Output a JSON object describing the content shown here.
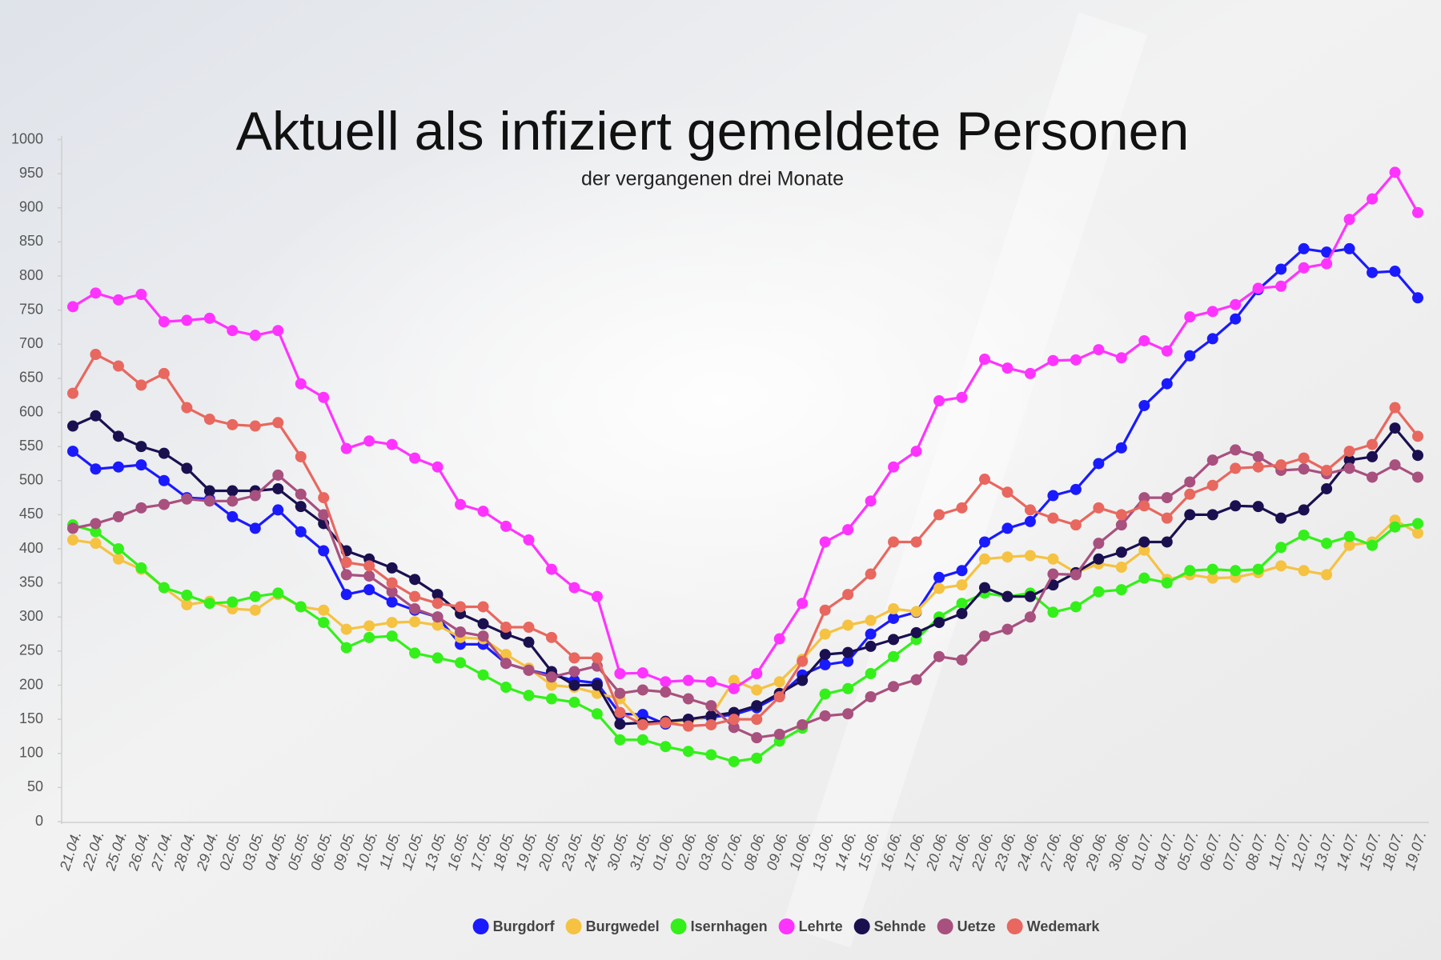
{
  "chart_data": {
    "type": "line",
    "title": "Aktuell als infiziert gemeldete Personen",
    "subtitle": "der vergangenen drei Monate",
    "categories": [
      "21.04.",
      "22.04.",
      "25.04.",
      "26.04.",
      "27.04.",
      "28.04.",
      "29.04.",
      "02.05.",
      "03.05.",
      "04.05.",
      "05.05.",
      "06.05.",
      "09.05.",
      "10.05.",
      "11.05.",
      "12.05.",
      "13.05.",
      "16.05.",
      "17.05.",
      "18.05.",
      "19.05.",
      "20.05.",
      "23.05.",
      "24.05.",
      "30.05.",
      "31.05.",
      "01.06.",
      "02.06.",
      "03.06.",
      "07.06.",
      "08.06.",
      "09.06.",
      "10.06.",
      "13.06.",
      "14.06.",
      "15.06.",
      "16.06.",
      "17.06.",
      "20.06.",
      "21.06.",
      "22.06.",
      "23.06.",
      "24.06.",
      "27.06.",
      "28.06.",
      "29.06.",
      "30.06.",
      "01.07.",
      "04.07.",
      "05.07.",
      "06.07.",
      "07.07.",
      "08.07.",
      "11.07.",
      "12.07.",
      "13.07.",
      "14.07.",
      "15.07.",
      "18.07.",
      "19.07."
    ],
    "series": [
      {
        "name": "Burgdorf",
        "color": "#1a1aff",
        "values": [
          543,
          517,
          520,
          523,
          500,
          475,
          473,
          447,
          430,
          457,
          425,
          397,
          333,
          340,
          322,
          310,
          300,
          260,
          260,
          232,
          222,
          215,
          207,
          203,
          158,
          157,
          143,
          150,
          153,
          157,
          167,
          185,
          215,
          230,
          235,
          275,
          298,
          307,
          358,
          368,
          410,
          430,
          440,
          478,
          487,
          525,
          548,
          610,
          642,
          683,
          708,
          737,
          780,
          810,
          840,
          835,
          840,
          805,
          807,
          768
        ]
      },
      {
        "name": "Burgwedel",
        "color": "#f5c242",
        "values": [
          413,
          408,
          385,
          370,
          343,
          318,
          323,
          312,
          310,
          333,
          315,
          310,
          282,
          287,
          292,
          293,
          288,
          270,
          268,
          245,
          225,
          200,
          197,
          188,
          180,
          143,
          145,
          148,
          155,
          207,
          193,
          205,
          238,
          275,
          288,
          295,
          312,
          308,
          342,
          347,
          385,
          388,
          390,
          385,
          365,
          378,
          373,
          398,
          355,
          362,
          357,
          358,
          365,
          375,
          368,
          362,
          405,
          410,
          442,
          423
        ]
      },
      {
        "name": "Isernhagen",
        "color": "#33f01a",
        "values": [
          435,
          425,
          400,
          372,
          343,
          332,
          320,
          322,
          330,
          335,
          315,
          292,
          255,
          270,
          272,
          247,
          240,
          233,
          215,
          197,
          185,
          180,
          175,
          158,
          120,
          120,
          110,
          103,
          98,
          88,
          93,
          118,
          137,
          187,
          195,
          217,
          242,
          267,
          300,
          320,
          335,
          330,
          335,
          307,
          315,
          337,
          340,
          357,
          350,
          368,
          370,
          368,
          370,
          402,
          420,
          408,
          418,
          405,
          432,
          437
        ]
      },
      {
        "name": "Lehrte",
        "color": "#ff33ff",
        "values": [
          755,
          775,
          765,
          773,
          733,
          735,
          738,
          720,
          713,
          720,
          642,
          622,
          547,
          558,
          553,
          533,
          520,
          465,
          455,
          433,
          413,
          370,
          343,
          330,
          217,
          218,
          205,
          207,
          205,
          195,
          217,
          268,
          320,
          410,
          428,
          470,
          520,
          543,
          617,
          622,
          678,
          665,
          657,
          676,
          677,
          692,
          680,
          705,
          690,
          740,
          748,
          758,
          782,
          785,
          812,
          818,
          883,
          913,
          952,
          893
        ]
      },
      {
        "name": "Sehnde",
        "color": "#1a1050",
        "values": [
          580,
          595,
          565,
          550,
          540,
          518,
          485,
          485,
          485,
          488,
          462,
          437,
          397,
          385,
          372,
          355,
          333,
          305,
          290,
          275,
          263,
          220,
          200,
          200,
          143,
          145,
          147,
          150,
          155,
          160,
          170,
          188,
          207,
          245,
          248,
          257,
          267,
          277,
          292,
          305,
          343,
          330,
          330,
          347,
          365,
          385,
          395,
          410,
          410,
          450,
          450,
          463,
          462,
          445,
          457,
          488,
          530,
          535,
          577,
          537
        ]
      },
      {
        "name": "Uetze",
        "color": "#a8507e",
        "values": [
          430,
          437,
          447,
          460,
          465,
          473,
          470,
          470,
          478,
          508,
          480,
          450,
          362,
          360,
          337,
          312,
          300,
          278,
          272,
          232,
          222,
          212,
          220,
          228,
          188,
          193,
          190,
          180,
          170,
          138,
          123,
          128,
          142,
          155,
          158,
          183,
          198,
          208,
          242,
          237,
          272,
          282,
          300,
          363,
          362,
          408,
          435,
          475,
          475,
          498,
          530,
          545,
          535,
          515,
          517,
          510,
          518,
          505,
          523,
          505
        ]
      },
      {
        "name": "Wedemark",
        "color": "#e8675f",
        "values": [
          628,
          685,
          668,
          640,
          657,
          607,
          590,
          582,
          580,
          585,
          535,
          475,
          380,
          375,
          350,
          330,
          320,
          315,
          315,
          285,
          285,
          270,
          240,
          240,
          160,
          142,
          145,
          140,
          142,
          150,
          150,
          183,
          235,
          310,
          333,
          363,
          410,
          410,
          450,
          460,
          502,
          483,
          457,
          445,
          435,
          460,
          450,
          463,
          445,
          480,
          493,
          518,
          520,
          523,
          533,
          515,
          543,
          553,
          607,
          565
        ]
      }
    ],
    "ylim": [
      0,
      1000
    ],
    "yticks": [
      0,
      50,
      100,
      150,
      200,
      250,
      300,
      350,
      400,
      450,
      500,
      550,
      600,
      650,
      700,
      750,
      800,
      850,
      900,
      950,
      1000
    ],
    "grid": false
  }
}
